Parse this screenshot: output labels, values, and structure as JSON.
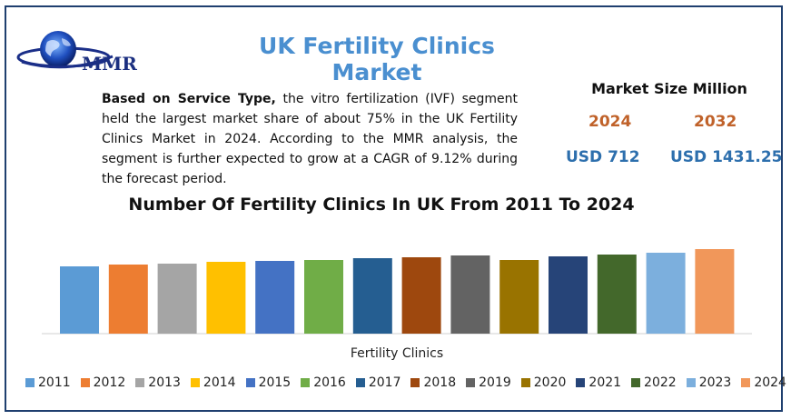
{
  "header": {
    "logo_text": "MMR",
    "title": "UK Fertility Clinics Market"
  },
  "description": {
    "bold": "Based on Service Type,",
    "text": " the vitro fertilization (IVF) segment held the largest market share of about 75% in the UK Fertility Clinics Market in 2024.  According to the MMR analysis, the segment is further expected to grow at a CAGR of 9.12% during the forecast period."
  },
  "market_size": {
    "title": "Market Size Million",
    "year_start": "2024",
    "year_end": "2032",
    "value_start": "USD 712",
    "value_end": "USD 1431.25"
  },
  "colors": {
    "title": "#4a8fd0",
    "year": "#c0622a",
    "value": "#2d6fad",
    "frame": "#1f3f6f"
  },
  "chart_data": {
    "type": "bar",
    "title": "Number Of Fertility Clinics In UK From 2011 To 2024",
    "xlabel": "Fertility Clinics",
    "ylabel": "",
    "categories": [
      "2011",
      "2012",
      "2013",
      "2014",
      "2015",
      "2016",
      "2017",
      "2018",
      "2019",
      "2020",
      "2021",
      "2022",
      "2023",
      "2024"
    ],
    "values": [
      74,
      76,
      77,
      79,
      80,
      81,
      83,
      84,
      86,
      81,
      85,
      87,
      89,
      93
    ],
    "ylim": [
      0,
      100
    ],
    "grid": false,
    "legend_position": "bottom",
    "series_colors": [
      "#5b9bd5",
      "#ed7d31",
      "#a5a5a5",
      "#ffc000",
      "#4472c4",
      "#70ad47",
      "#255e91",
      "#9e480e",
      "#636363",
      "#997300",
      "#264478",
      "#43682b",
      "#7cafdd",
      "#f1975a"
    ]
  }
}
